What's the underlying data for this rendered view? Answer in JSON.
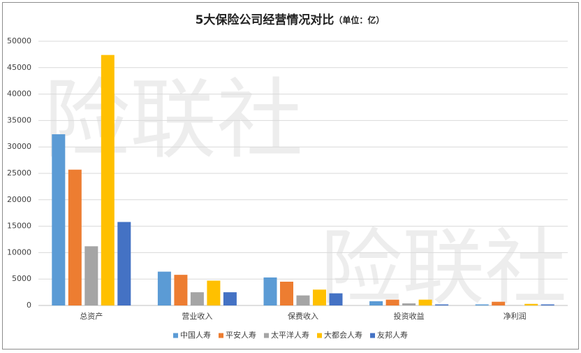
{
  "chart_data": {
    "type": "bar",
    "title": "5大保险公司经营情况对比",
    "subtitle": "（单位：亿）",
    "watermark": "险联社",
    "categories": [
      "总资产",
      "营业收入",
      "保费收入",
      "投资收益",
      "净利润"
    ],
    "series": [
      {
        "name": "中国人寿",
        "color": "#5b9bd5",
        "values": [
          32400,
          6400,
          5300,
          800,
          200
        ]
      },
      {
        "name": "平安人寿",
        "color": "#ed7d31",
        "values": [
          25700,
          5800,
          4500,
          1100,
          700
        ]
      },
      {
        "name": "太平洋人寿",
        "color": "#a5a5a5",
        "values": [
          11200,
          2500,
          1900,
          400,
          50
        ]
      },
      {
        "name": "大都会人寿",
        "color": "#ffc000",
        "values": [
          47400,
          4700,
          3000,
          1100,
          300
        ]
      },
      {
        "name": "友邦人寿",
        "color": "#4472c4",
        "values": [
          15800,
          2500,
          2300,
          200,
          200
        ]
      }
    ],
    "ylim": [
      0,
      50000
    ],
    "yticks": [
      0,
      5000,
      10000,
      15000,
      20000,
      25000,
      30000,
      35000,
      40000,
      45000,
      50000
    ],
    "grid": true,
    "legend": "bottom"
  }
}
